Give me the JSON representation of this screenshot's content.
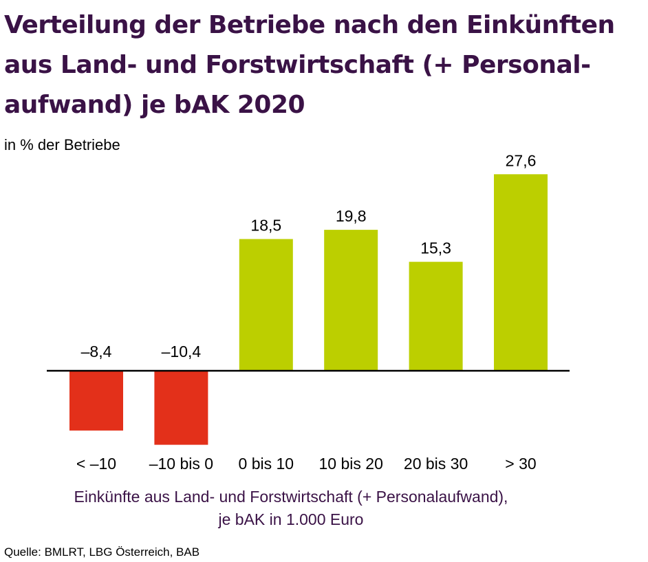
{
  "chart_data": {
    "type": "bar",
    "title": "Verteilung der Betriebe nach den Einkünften aus Land- und Forstwirtschaft (+ Personal-aufwand) je bAK 2020",
    "title_lines": [
      "Verteilung der Betriebe nach den Einkünften",
      "aus Land- und Forstwirtschaft (+ Personal-",
      "aufwand) je bAK 2020"
    ],
    "ylabel": "in % der Betriebe",
    "xlabel": "Einkünfte aus Land- und Forstwirtschaft (+ Personalaufwand), je bAK in 1.000 Euro",
    "xlabel_lines": [
      "Einkünfte aus Land- und Forstwirtschaft (+ Personalaufwand),",
      "je bAK in 1.000 Euro"
    ],
    "source": "Quelle: BMLRT, LBG Österreich, BAB",
    "categories": [
      "< –10",
      "–10 bis 0",
      "0 bis 10",
      "10 bis 20",
      "20 bis 30",
      "> 30"
    ],
    "values": [
      -8.4,
      -10.4,
      18.5,
      19.8,
      15.3,
      27.6
    ],
    "value_labels": [
      "–8,4",
      "–10,4",
      "18,5",
      "19,8",
      "15,3",
      "27,6"
    ],
    "colors": {
      "negative": "#e3301a",
      "positive": "#bccf00",
      "title": "#3a1246",
      "xlabel": "#3a1246",
      "axis": "#000000"
    },
    "ylim": [
      -10.4,
      27.6
    ],
    "grid": false,
    "legend": "none"
  }
}
